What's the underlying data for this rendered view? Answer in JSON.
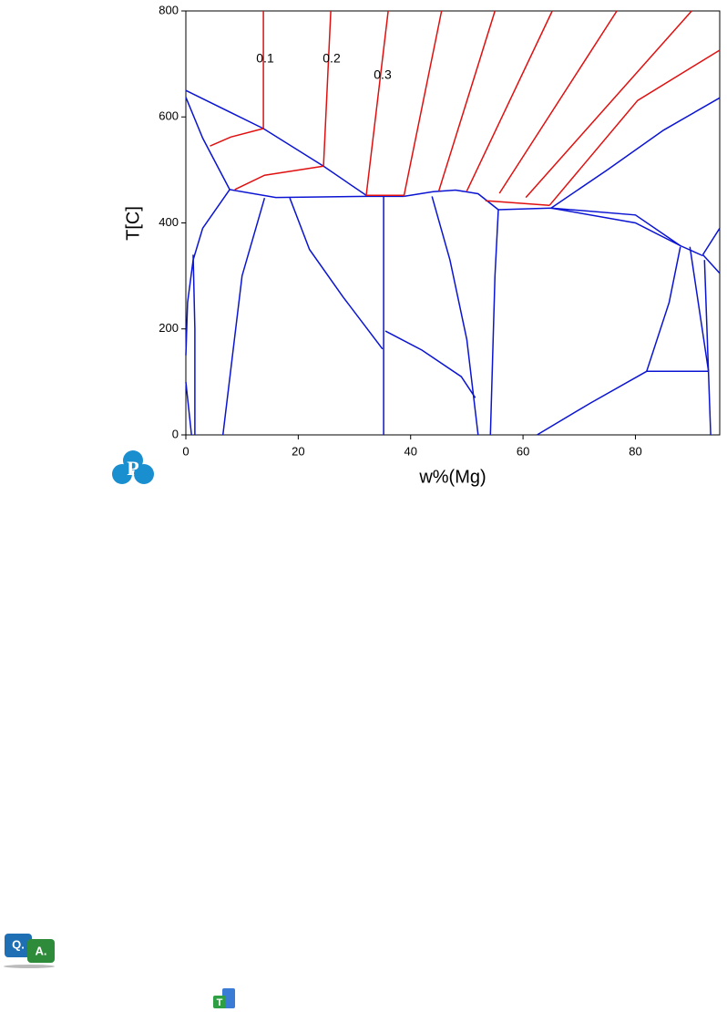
{
  "chart_data": {
    "type": "line",
    "ylabel": "T[C]",
    "xlabel": "w%(Mg)",
    "xlim": [
      0,
      95
    ],
    "ylim": [
      0,
      800
    ],
    "xticks": [
      0,
      20,
      40,
      60,
      80
    ],
    "yticks": [
      0,
      200,
      400,
      600,
      800
    ],
    "annotations": [
      "0.1",
      "0.2",
      "0.3"
    ],
    "series": [
      {
        "color": "#0a14d2",
        "x": [
          0,
          13.8,
          24.5,
          32.1
        ],
        "values": [
          650,
          578,
          507,
          452
        ]
      },
      {
        "color": "#0a14d2",
        "x": [
          0,
          3,
          7.8
        ],
        "values": [
          637,
          560,
          463
        ]
      },
      {
        "color": "#0a14d2",
        "x": [
          7.8,
          3,
          1.3,
          0.3,
          0
        ],
        "values": [
          463,
          390,
          330,
          250,
          150
        ]
      },
      {
        "color": "#0a14d2",
        "x": [
          1.3,
          1.6,
          1.6
        ],
        "values": [
          340,
          200,
          0
        ]
      },
      {
        "color": "#0a14d2",
        "x": [
          0,
          1
        ],
        "values": [
          100,
          0
        ]
      },
      {
        "color": "#0a14d2",
        "x": [
          7.8,
          16,
          32.1,
          38.8
        ],
        "values": [
          463,
          448,
          450,
          450
        ]
      },
      {
        "color": "#0a14d2",
        "x": [
          14,
          10,
          6.6
        ],
        "values": [
          447,
          300,
          0
        ]
      },
      {
        "color": "#0a14d2",
        "x": [
          18.5,
          22,
          28,
          35
        ],
        "values": [
          447,
          350,
          260,
          162
        ]
      },
      {
        "color": "#0a14d2",
        "x": [
          35.2,
          35.2
        ],
        "values": [
          450,
          0
        ]
      },
      {
        "color": "#0a14d2",
        "x": [
          35.5,
          42,
          49,
          51.5
        ],
        "values": [
          196,
          160,
          110,
          70
        ]
      },
      {
        "color": "#0a14d2",
        "x": [
          43.8,
          47,
          50,
          52
        ],
        "values": [
          450,
          330,
          180,
          0
        ]
      },
      {
        "color": "#0a14d2",
        "x": [
          38.8,
          44,
          48,
          52,
          55.6
        ],
        "values": [
          450,
          459,
          462,
          455,
          425
        ]
      },
      {
        "color": "#0a14d2",
        "x": [
          55.6,
          55,
          54.2
        ],
        "values": [
          425,
          300,
          0
        ]
      },
      {
        "color": "#0a14d2",
        "x": [
          55.6,
          65,
          80,
          88
        ],
        "values": [
          425,
          428,
          415,
          357
        ]
      },
      {
        "color": "#0a14d2",
        "x": [
          65,
          75,
          85,
          95
        ],
        "values": [
          428,
          500,
          575,
          636
        ]
      },
      {
        "color": "#0a14d2",
        "x": [
          65,
          80,
          88,
          92
        ],
        "values": [
          428,
          400,
          357,
          338
        ]
      },
      {
        "color": "#0a14d2",
        "x": [
          92,
          95
        ],
        "values": [
          340,
          390
        ]
      },
      {
        "color": "#0a14d2",
        "x": [
          92,
          95
        ],
        "values": [
          340,
          305
        ]
      },
      {
        "color": "#0a14d2",
        "x": [
          88,
          86,
          82
        ],
        "values": [
          355,
          250,
          120
        ]
      },
      {
        "color": "#0a14d2",
        "x": [
          82,
          72,
          62.5
        ],
        "values": [
          120,
          60,
          0
        ]
      },
      {
        "color": "#0a14d2",
        "x": [
          82,
          93
        ],
        "values": [
          120,
          120
        ]
      },
      {
        "color": "#0a14d2",
        "x": [
          89.7,
          93
        ],
        "values": [
          355,
          120
        ]
      },
      {
        "color": "#0a14d2",
        "x": [
          92.3,
          93.4
        ],
        "values": [
          330,
          0
        ]
      },
      {
        "color": "#e01010",
        "x": [
          13.8,
          13.8
        ],
        "values": [
          800,
          578
        ]
      },
      {
        "color": "#e01010",
        "x": [
          13.8,
          8,
          4.3
        ],
        "values": [
          578,
          562,
          545
        ]
      },
      {
        "color": "#e01010",
        "x": [
          25.8,
          24.5
        ],
        "values": [
          800,
          507
        ]
      },
      {
        "color": "#e01010",
        "x": [
          24.5,
          14,
          8.7
        ],
        "values": [
          507,
          490,
          463
        ]
      },
      {
        "color": "#e01010",
        "x": [
          36,
          32.1
        ],
        "values": [
          800,
          452
        ]
      },
      {
        "color": "#e01010",
        "x": [
          32.1,
          38.8
        ],
        "values": [
          452,
          452
        ]
      },
      {
        "color": "#e01010",
        "x": [
          45.5,
          38.8
        ],
        "values": [
          800,
          450
        ]
      },
      {
        "color": "#e01010",
        "x": [
          55,
          45
        ],
        "values": [
          800,
          460
        ]
      },
      {
        "color": "#e01010",
        "x": [
          65.2,
          50
        ],
        "values": [
          800,
          460
        ]
      },
      {
        "color": "#e01010",
        "x": [
          76.7,
          55.8
        ],
        "values": [
          800,
          456
        ]
      },
      {
        "color": "#e01010",
        "x": [
          90,
          60.5
        ],
        "values": [
          800,
          448
        ]
      },
      {
        "color": "#e01010",
        "x": [
          95,
          80.4,
          64.7
        ],
        "values": [
          726,
          631,
          433
        ]
      },
      {
        "color": "#e01010",
        "x": [
          53.3,
          64.7
        ],
        "values": [
          442,
          433
        ]
      }
    ]
  },
  "icons": {
    "logo": "P",
    "qa_q": "Q.",
    "qa_a": "A.",
    "tool": "T"
  }
}
